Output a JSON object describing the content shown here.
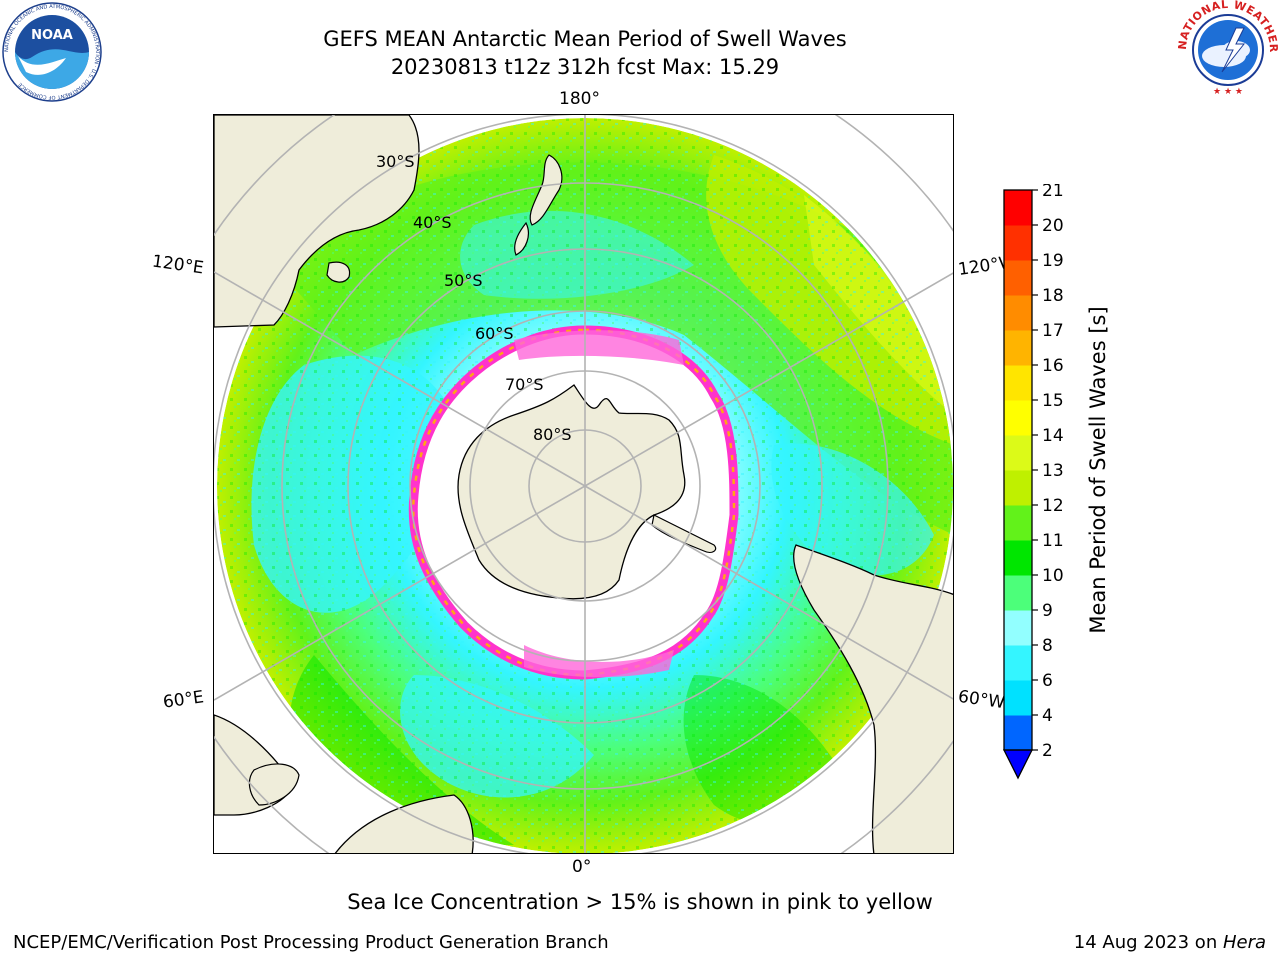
{
  "title": {
    "line1": "GEFS MEAN Antarctic Mean Period of Swell Waves",
    "line2": "20230813 t12z 312h fcst   Max: 15.29"
  },
  "logos": {
    "left": {
      "name": "NOAA",
      "ring_text": "NATIONAL OCEANIC AND ATMOSPHERIC ADMINISTRATION · U.S. DEPARTMENT OF COMMERCE",
      "icon": "noaa-logo"
    },
    "right": {
      "ring_text": "NATIONAL WEATHER SERVICE",
      "icon": "nws-logo"
    }
  },
  "map": {
    "projection": "south-polar-stereographic",
    "longitude_labels": {
      "top": "180°",
      "upper_left": "120°E",
      "upper_right": "120°W",
      "lower_left": "60°E",
      "lower_right": "60°W",
      "bottom": "0°"
    },
    "latitude_labels": [
      "30°S",
      "40°S",
      "50°S",
      "60°S",
      "70°S",
      "80°S"
    ],
    "colors": {
      "land": "#efedda",
      "grid": "#b3b3b3",
      "coastline": "#000000",
      "no_data": "#ffffff"
    }
  },
  "colorbar": {
    "title": "Mean Period of Swell Waves [s]",
    "ticks": [
      "2",
      "4",
      "6",
      "8",
      "9",
      "10",
      "11",
      "12",
      "13",
      "14",
      "15",
      "16",
      "17",
      "18",
      "19",
      "20",
      "21"
    ],
    "colors": [
      "#0066ff",
      "#00e1ff",
      "#34f5ff",
      "#92ffff",
      "#4cff7a",
      "#00e600",
      "#62f21a",
      "#bff000",
      "#dcfa18",
      "#ffff00",
      "#ffe500",
      "#ffb400",
      "#ff8c00",
      "#ff6000",
      "#ff3000",
      "#ff0000"
    ],
    "under_color": "#0000ff"
  },
  "note": "Sea Ice Concentration > 15% is shown in pink to yellow",
  "footer": {
    "left": "NCEP/EMC/Verification Post Processing Product Generation Branch",
    "right_date": "14 Aug 2023 on ",
    "right_host": "Hera"
  }
}
